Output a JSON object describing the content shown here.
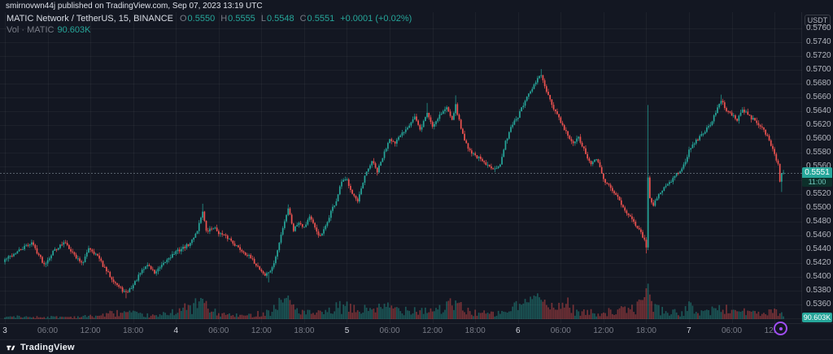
{
  "meta": {
    "attribution": "smirnovwn44j published on TradingView.com, Sep 07, 2023 13:19 UTC"
  },
  "header": {
    "symbol_title": "MATIC Network / TetherUS, 15, BINANCE",
    "ohlc": {
      "o_label": "O",
      "o": "0.5550",
      "h_label": "H",
      "h": "0.5555",
      "l_label": "L",
      "l": "0.5548",
      "c_label": "C",
      "c": "0.5551",
      "change": "+0.0001 (+0.02%)"
    },
    "volume_row": {
      "label": "Vol · MATIC",
      "value": "90.603K"
    }
  },
  "price_axis": {
    "currency_label": "USDT",
    "last_price_badge": {
      "price": "0.5551",
      "countdown": "11:00"
    },
    "volume_badge": "90.603K"
  },
  "footer": {
    "logo_text": "TradingView"
  },
  "colors": {
    "background": "#131722",
    "up": "#26a69a",
    "down": "#ef5350",
    "text_muted": "#787b86",
    "text_light": "#d1d4dc",
    "badge_teal": "#26a69a",
    "avatar_ring": "#a14ef5",
    "grid": "rgba(255,255,255,0.045)"
  },
  "chart_data": {
    "type": "candlestick",
    "title": "MATIC Network / TetherUS",
    "exchange": "BINANCE",
    "interval": "15",
    "quote_currency": "USDT",
    "x_range": {
      "start": "2023-09-03 00:00 UTC",
      "end": "2023-09-07 13:15 UTC",
      "candle_minutes": 15,
      "candle_count": 438
    },
    "price_axis": {
      "min": 0.534,
      "max": 0.576,
      "tick_step": 0.002
    },
    "last_bar": {
      "open": 0.555,
      "high": 0.5555,
      "low": 0.5548,
      "close": 0.5551,
      "change": "+0.0001 (+0.02%)",
      "volume": "90.603K",
      "countdown": "11:00"
    },
    "time_labels": [
      {
        "t": 0,
        "text": "3",
        "major": true
      },
      {
        "t": 24,
        "text": "06:00"
      },
      {
        "t": 48,
        "text": "12:00"
      },
      {
        "t": 72,
        "text": "18:00"
      },
      {
        "t": 96,
        "text": "4",
        "major": true
      },
      {
        "t": 120,
        "text": "06:00"
      },
      {
        "t": 144,
        "text": "12:00"
      },
      {
        "t": 168,
        "text": "18:00"
      },
      {
        "t": 192,
        "text": "5",
        "major": true
      },
      {
        "t": 216,
        "text": "06:00"
      },
      {
        "t": 240,
        "text": "12:00"
      },
      {
        "t": 264,
        "text": "18:00"
      },
      {
        "t": 288,
        "text": "6",
        "major": true
      },
      {
        "t": 312,
        "text": "06:00"
      },
      {
        "t": 336,
        "text": "12:00"
      },
      {
        "t": 360,
        "text": "18:00"
      },
      {
        "t": 384,
        "text": "7",
        "major": true
      },
      {
        "t": 408,
        "text": "06:00"
      },
      {
        "t": 432,
        "text": "12:00"
      }
    ],
    "close_anchors": [
      [
        0,
        0.5425
      ],
      [
        8,
        0.5438
      ],
      [
        15,
        0.545
      ],
      [
        22,
        0.5418
      ],
      [
        28,
        0.544
      ],
      [
        34,
        0.545
      ],
      [
        40,
        0.5428
      ],
      [
        44,
        0.542
      ],
      [
        47,
        0.5443
      ],
      [
        52,
        0.543
      ],
      [
        56,
        0.5412
      ],
      [
        60,
        0.5398
      ],
      [
        64,
        0.5385
      ],
      [
        68,
        0.5376
      ],
      [
        72,
        0.5388
      ],
      [
        76,
        0.5405
      ],
      [
        80,
        0.5418
      ],
      [
        84,
        0.5406
      ],
      [
        88,
        0.5415
      ],
      [
        92,
        0.5428
      ],
      [
        96,
        0.5436
      ],
      [
        100,
        0.5442
      ],
      [
        104,
        0.5448
      ],
      [
        108,
        0.5468
      ],
      [
        111,
        0.5496
      ],
      [
        113,
        0.5465
      ],
      [
        117,
        0.5472
      ],
      [
        121,
        0.5462
      ],
      [
        126,
        0.5455
      ],
      [
        131,
        0.5442
      ],
      [
        136,
        0.5432
      ],
      [
        141,
        0.5418
      ],
      [
        146,
        0.5402
      ],
      [
        150,
        0.5412
      ],
      [
        153,
        0.5438
      ],
      [
        156,
        0.5472
      ],
      [
        159,
        0.55
      ],
      [
        162,
        0.5468
      ],
      [
        165,
        0.548
      ],
      [
        168,
        0.5472
      ],
      [
        171,
        0.5488
      ],
      [
        174,
        0.547
      ],
      [
        177,
        0.5458
      ],
      [
        180,
        0.5472
      ],
      [
        183,
        0.5495
      ],
      [
        186,
        0.551
      ],
      [
        189,
        0.5538
      ],
      [
        192,
        0.554
      ],
      [
        195,
        0.5522
      ],
      [
        198,
        0.5508
      ],
      [
        202,
        0.5545
      ],
      [
        206,
        0.5568
      ],
      [
        209,
        0.5552
      ],
      [
        213,
        0.558
      ],
      [
        216,
        0.5602
      ],
      [
        219,
        0.5592
      ],
      [
        222,
        0.5605
      ],
      [
        226,
        0.5618
      ],
      [
        230,
        0.5632
      ],
      [
        233,
        0.5612
      ],
      [
        237,
        0.5638
      ],
      [
        240,
        0.5618
      ],
      [
        244,
        0.5635
      ],
      [
        248,
        0.5645
      ],
      [
        251,
        0.563
      ],
      [
        253,
        0.5648
      ],
      [
        256,
        0.5615
      ],
      [
        259,
        0.5592
      ],
      [
        262,
        0.558
      ],
      [
        266,
        0.5572
      ],
      [
        270,
        0.5562
      ],
      [
        274,
        0.5558
      ],
      [
        278,
        0.5562
      ],
      [
        281,
        0.5595
      ],
      [
        284,
        0.5618
      ],
      [
        288,
        0.5632
      ],
      [
        292,
        0.5655
      ],
      [
        296,
        0.5672
      ],
      [
        299,
        0.5688
      ],
      [
        301,
        0.5692
      ],
      [
        304,
        0.5668
      ],
      [
        307,
        0.5648
      ],
      [
        310,
        0.5635
      ],
      [
        313,
        0.5618
      ],
      [
        316,
        0.5605
      ],
      [
        319,
        0.5592
      ],
      [
        322,
        0.5602
      ],
      [
        326,
        0.5578
      ],
      [
        329,
        0.5562
      ],
      [
        332,
        0.5572
      ],
      [
        336,
        0.5542
      ],
      [
        340,
        0.5528
      ],
      [
        344,
        0.5515
      ],
      [
        348,
        0.5498
      ],
      [
        352,
        0.5482
      ],
      [
        356,
        0.547
      ],
      [
        359,
        0.5452
      ],
      [
        360,
        0.5442
      ],
      [
        361,
        0.5542
      ],
      [
        362,
        0.5512
      ],
      [
        364,
        0.5505
      ],
      [
        367,
        0.552
      ],
      [
        371,
        0.5532
      ],
      [
        375,
        0.5542
      ],
      [
        379,
        0.5555
      ],
      [
        382,
        0.5568
      ],
      [
        384,
        0.5582
      ],
      [
        388,
        0.5598
      ],
      [
        392,
        0.5608
      ],
      [
        396,
        0.5622
      ],
      [
        399,
        0.5638
      ],
      [
        402,
        0.5655
      ],
      [
        405,
        0.5642
      ],
      [
        408,
        0.5635
      ],
      [
        411,
        0.5628
      ],
      [
        414,
        0.5642
      ],
      [
        417,
        0.5635
      ],
      [
        420,
        0.5628
      ],
      [
        423,
        0.5622
      ],
      [
        426,
        0.5612
      ],
      [
        429,
        0.5598
      ],
      [
        432,
        0.5578
      ],
      [
        434,
        0.5562
      ],
      [
        435,
        0.554
      ],
      [
        436,
        0.5535
      ],
      [
        437,
        0.5551
      ]
    ],
    "wick_spikes": [
      {
        "t": 68,
        "low": 0.5369
      },
      {
        "t": 111,
        "high": 0.5506
      },
      {
        "t": 148,
        "low": 0.5392
      },
      {
        "t": 159,
        "high": 0.5505
      },
      {
        "t": 237,
        "high": 0.5652
      },
      {
        "t": 253,
        "high": 0.5663
      },
      {
        "t": 301,
        "high": 0.5701
      },
      {
        "t": 360,
        "low": 0.5434
      },
      {
        "t": 361,
        "high": 0.5649
      },
      {
        "t": 402,
        "high": 0.5664
      },
      {
        "t": 436,
        "low": 0.5523
      },
      {
        "t": 437,
        "high": 0.5555,
        "low": 0.5548
      }
    ],
    "volume_anchors_k": [
      [
        0,
        60
      ],
      [
        20,
        50
      ],
      [
        40,
        55
      ],
      [
        52,
        80
      ],
      [
        60,
        140
      ],
      [
        68,
        160
      ],
      [
        76,
        100
      ],
      [
        86,
        70
      ],
      [
        96,
        220
      ],
      [
        104,
        260
      ],
      [
        108,
        380
      ],
      [
        111,
        500
      ],
      [
        114,
        220
      ],
      [
        120,
        130
      ],
      [
        128,
        90
      ],
      [
        136,
        80
      ],
      [
        144,
        150
      ],
      [
        150,
        200
      ],
      [
        155,
        450
      ],
      [
        159,
        520
      ],
      [
        163,
        260
      ],
      [
        168,
        160
      ],
      [
        174,
        130
      ],
      [
        180,
        150
      ],
      [
        186,
        260
      ],
      [
        190,
        300
      ],
      [
        194,
        240
      ],
      [
        200,
        200
      ],
      [
        206,
        280
      ],
      [
        212,
        240
      ],
      [
        216,
        300
      ],
      [
        222,
        220
      ],
      [
        228,
        260
      ],
      [
        234,
        220
      ],
      [
        240,
        230
      ],
      [
        246,
        260
      ],
      [
        253,
        380
      ],
      [
        258,
        200
      ],
      [
        264,
        160
      ],
      [
        270,
        130
      ],
      [
        276,
        120
      ],
      [
        282,
        200
      ],
      [
        288,
        320
      ],
      [
        294,
        420
      ],
      [
        299,
        700
      ],
      [
        303,
        360
      ],
      [
        308,
        220
      ],
      [
        315,
        420
      ],
      [
        320,
        180
      ],
      [
        326,
        160
      ],
      [
        332,
        150
      ],
      [
        338,
        170
      ],
      [
        344,
        190
      ],
      [
        350,
        220
      ],
      [
        356,
        320
      ],
      [
        359,
        600
      ],
      [
        360,
        880
      ],
      [
        361,
        760
      ],
      [
        363,
        380
      ],
      [
        368,
        220
      ],
      [
        374,
        160
      ],
      [
        380,
        140
      ],
      [
        384,
        280
      ],
      [
        390,
        180
      ],
      [
        396,
        200
      ],
      [
        402,
        260
      ],
      [
        408,
        200
      ],
      [
        414,
        220
      ],
      [
        420,
        140
      ],
      [
        426,
        130
      ],
      [
        432,
        170
      ],
      [
        435,
        140
      ],
      [
        437,
        91
      ]
    ],
    "volume_scale_max_k": 950
  }
}
